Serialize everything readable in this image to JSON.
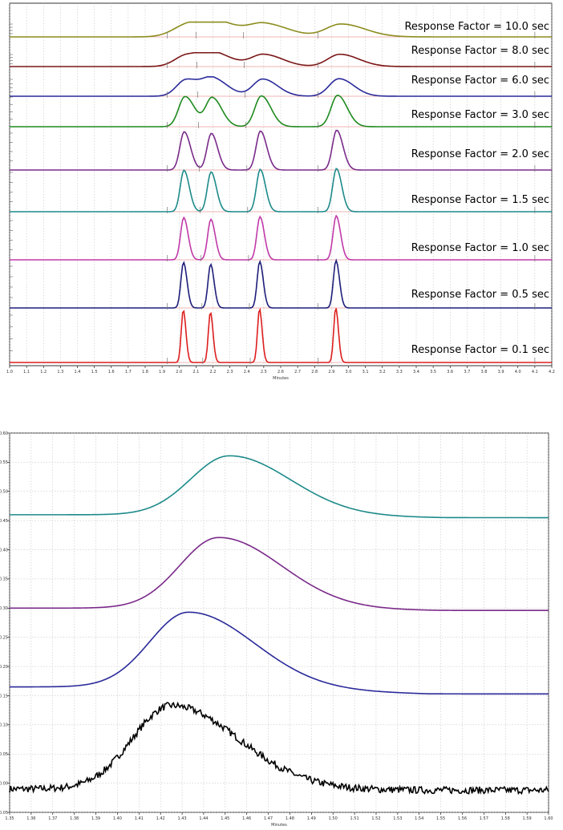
{
  "chart_data": [
    {
      "type": "line",
      "title": "",
      "xlabel": "Minutes",
      "ylabel": "",
      "xlim": [
        1.0,
        4.2
      ],
      "xticks": [
        "1.0",
        "1.1",
        "1.2",
        "1.3",
        "1.4",
        "1.5",
        "1.6",
        "1.7",
        "1.8",
        "1.9",
        "2.0",
        "2.1",
        "2.2",
        "2.3",
        "2.4",
        "2.5",
        "2.6",
        "2.7",
        "2.8",
        "2.9",
        "3.0",
        "3.1",
        "3.2",
        "3.3",
        "3.4",
        "3.5",
        "3.6",
        "3.7",
        "3.8",
        "3.9",
        "4.0",
        "4.1",
        "4.2"
      ],
      "peak_centers_minutes": [
        2.02,
        2.18,
        2.47,
        2.92
      ],
      "series": [
        {
          "name": "Response Factor = 10.0 sec",
          "color": "#8c8c1e",
          "response_factor_sec": 10.0
        },
        {
          "name": "Response Factor = 8.0 sec",
          "color": "#7a1616",
          "response_factor_sec": 8.0
        },
        {
          "name": "Response Factor = 6.0 sec",
          "color": "#2a2a9a",
          "response_factor_sec": 6.0
        },
        {
          "name": "Response Factor = 3.0 sec",
          "color": "#1e8a1e",
          "response_factor_sec": 3.0
        },
        {
          "name": "Response Factor = 2.0 sec",
          "color": "#7a2a8a",
          "response_factor_sec": 2.0
        },
        {
          "name": "Response Factor = 1.5 sec",
          "color": "#1e8a8a",
          "response_factor_sec": 1.5
        },
        {
          "name": "Response Factor = 1.0 sec",
          "color": "#c03aa8",
          "response_factor_sec": 1.0
        },
        {
          "name": "Response Factor = 0.5 sec",
          "color": "#1e1e7a",
          "response_factor_sec": 0.5
        },
        {
          "name": "Response Factor = 0.1 sec",
          "color": "#dd1e1e",
          "response_factor_sec": 0.1
        }
      ]
    },
    {
      "type": "line",
      "title": "",
      "xlabel": "Minutes",
      "ylabel": "",
      "xlim": [
        1.35,
        1.6
      ],
      "ylim": [
        -0.05,
        0.6
      ],
      "xticks": [
        "1.35",
        "1.36",
        "1.37",
        "1.38",
        "1.39",
        "1.40",
        "1.41",
        "1.42",
        "1.43",
        "1.44",
        "1.45",
        "1.46",
        "1.47",
        "1.48",
        "1.49",
        "1.50",
        "1.51",
        "1.52",
        "1.53",
        "1.54",
        "1.55",
        "1.56",
        "1.57",
        "1.58",
        "1.59",
        "1.60"
      ],
      "yticks": [
        "-0.05",
        "0.00",
        "0.05",
        "0.10",
        "0.15",
        "0.20",
        "0.25",
        "0.30",
        "0.35",
        "0.40",
        "0.45",
        "0.50",
        "0.55",
        "0.60"
      ],
      "series": [
        {
          "name": "teal trace",
          "color": "#1e8a8a",
          "baseline": 0.46,
          "apex_x": 1.452,
          "apex_y": 0.561,
          "end_y": 0.455
        },
        {
          "name": "purple trace",
          "color": "#7a2a8a",
          "baseline": 0.3,
          "apex_x": 1.447,
          "apex_y": 0.421,
          "end_y": 0.296
        },
        {
          "name": "navy trace",
          "color": "#2a2a9a",
          "baseline": 0.165,
          "apex_x": 1.433,
          "apex_y": 0.293,
          "end_y": 0.153
        },
        {
          "name": "black noisy trace",
          "color": "#000000",
          "baseline": -0.01,
          "apex_x": 1.425,
          "apex_y": 0.133,
          "end_y": -0.012
        }
      ]
    }
  ]
}
